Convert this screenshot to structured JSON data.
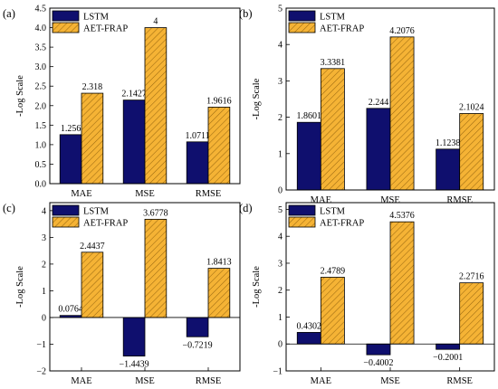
{
  "colors": {
    "lstm": "#0f0f6e",
    "aet_frap": "#f5b335",
    "hatch": "#9c6a10",
    "axis": "#000000"
  },
  "chart_data": [
    {
      "panel": "(a)",
      "type": "bar",
      "categories": [
        "MAE",
        "MSE",
        "RMSE"
      ],
      "series": [
        {
          "name": "LSTM",
          "values": [
            1.256,
            2.1427,
            1.0711
          ],
          "labels": [
            "1.256",
            "2.1427",
            "1.0711"
          ]
        },
        {
          "name": "AET-FRAP",
          "values": [
            2.318,
            4,
            1.9616
          ],
          "labels": [
            "2.318",
            "4",
            "1.9616"
          ]
        }
      ],
      "ylabel": "-Log Scale",
      "ylim": [
        0,
        4.5
      ],
      "yticks": [
        0,
        0.5,
        1.0,
        1.5,
        2.0,
        2.5,
        3.0,
        3.5,
        4.0,
        4.5
      ],
      "ytick_labels": [
        "0.0",
        "0.5",
        "1.0",
        "1.5",
        "2.0",
        "2.5",
        "3.0",
        "3.5",
        "4.0",
        "4.5"
      ],
      "legend": "top-left",
      "grid": false
    },
    {
      "panel": "(b)",
      "type": "bar",
      "categories": [
        "MAE",
        "MSE",
        "RMSE"
      ],
      "series": [
        {
          "name": "LSTM",
          "values": [
            1.8601,
            2.244,
            1.1238
          ],
          "labels": [
            "1.8601",
            "2.244",
            "1.1238"
          ]
        },
        {
          "name": "AET-FRAP",
          "values": [
            3.3381,
            4.2076,
            2.1024
          ],
          "labels": [
            "3.3381",
            "4.2076",
            "2.1024"
          ]
        }
      ],
      "ylabel": "-Log Scale",
      "ylim": [
        0,
        5
      ],
      "yticks": [
        0,
        1,
        2,
        3,
        4,
        5
      ],
      "ytick_labels": [
        "0",
        "1",
        "2",
        "3",
        "4",
        "5"
      ],
      "legend": "top-left",
      "grid": false
    },
    {
      "panel": "(c)",
      "type": "bar",
      "categories": [
        "MAE",
        "MSE",
        "RMSE"
      ],
      "series": [
        {
          "name": "LSTM",
          "values": [
            0.0764,
            -1.4439,
            -0.7219
          ],
          "labels": [
            "0.0764",
            "−1.4439",
            "−0.7219"
          ]
        },
        {
          "name": "AET-FRAP",
          "values": [
            2.4437,
            3.6778,
            1.8413
          ],
          "labels": [
            "2.4437",
            "3.6778",
            "1.8413"
          ]
        }
      ],
      "ylabel": "-Log Scale",
      "ylim": [
        -2,
        4.3
      ],
      "yticks": [
        -2,
        -1,
        0,
        1,
        2,
        3,
        4
      ],
      "ytick_labels": [
        "−2",
        "−1",
        "0",
        "1",
        "2",
        "3",
        "4"
      ],
      "legend": "top-left",
      "grid": false
    },
    {
      "panel": "(d)",
      "type": "bar",
      "categories": [
        "MAE",
        "MSE",
        "RMSE"
      ],
      "series": [
        {
          "name": "LSTM",
          "values": [
            0.4302,
            -0.4002,
            -0.2001
          ],
          "labels": [
            "0.4302",
            "−0.4002",
            "−0.2001"
          ]
        },
        {
          "name": "AET-FRAP",
          "values": [
            2.4789,
            4.5376,
            2.2716
          ],
          "labels": [
            "2.4789",
            "4.5376",
            "2.2716"
          ]
        }
      ],
      "ylabel": "-Log Scale",
      "ylim": [
        -1,
        5.25
      ],
      "yticks": [
        -1,
        0,
        1,
        2,
        3,
        4,
        5
      ],
      "ytick_labels": [
        "−1",
        "0",
        "1",
        "2",
        "3",
        "4",
        "5"
      ],
      "legend": "top-left",
      "grid": false
    }
  ]
}
